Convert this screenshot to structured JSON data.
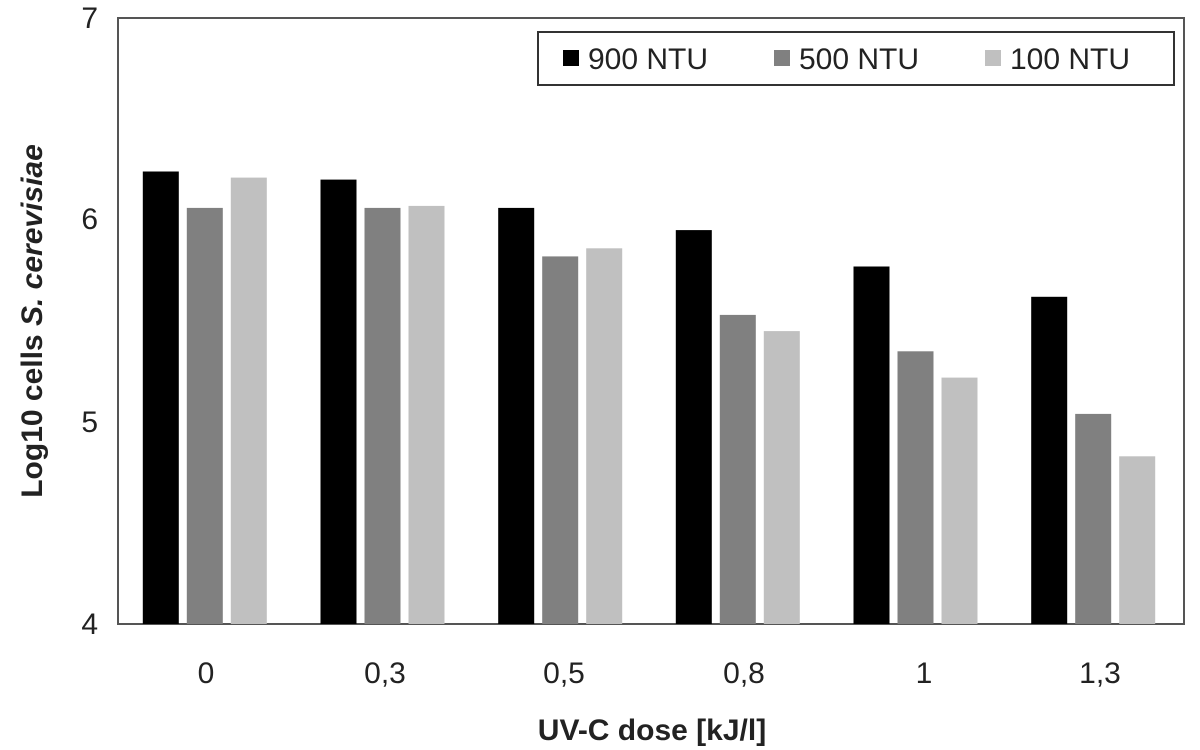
{
  "chart_data": {
    "type": "bar",
    "categories": [
      "0",
      "0,3",
      "0,5",
      "0,8",
      "1",
      "1,3"
    ],
    "series": [
      {
        "name": "900 NTU",
        "color": "#000000",
        "values": [
          6.24,
          6.2,
          6.06,
          5.95,
          5.77,
          5.62
        ]
      },
      {
        "name": "500 NTU",
        "color": "#808080",
        "values": [
          6.06,
          6.06,
          5.82,
          5.53,
          5.35,
          5.04
        ]
      },
      {
        "name": "100 NTU",
        "color": "#c0c0c0",
        "values": [
          6.21,
          6.07,
          5.86,
          5.45,
          5.22,
          4.83
        ]
      }
    ],
    "xlabel": "UV-C dose [kJ/l]",
    "ylabel_prefix": "Log10 cells ",
    "ylabel_italic": "S. cerevisiae",
    "ylim": [
      4,
      7
    ],
    "yticks": [
      "4",
      "5",
      "6",
      "7"
    ],
    "legend": "top-right",
    "grid": false
  }
}
